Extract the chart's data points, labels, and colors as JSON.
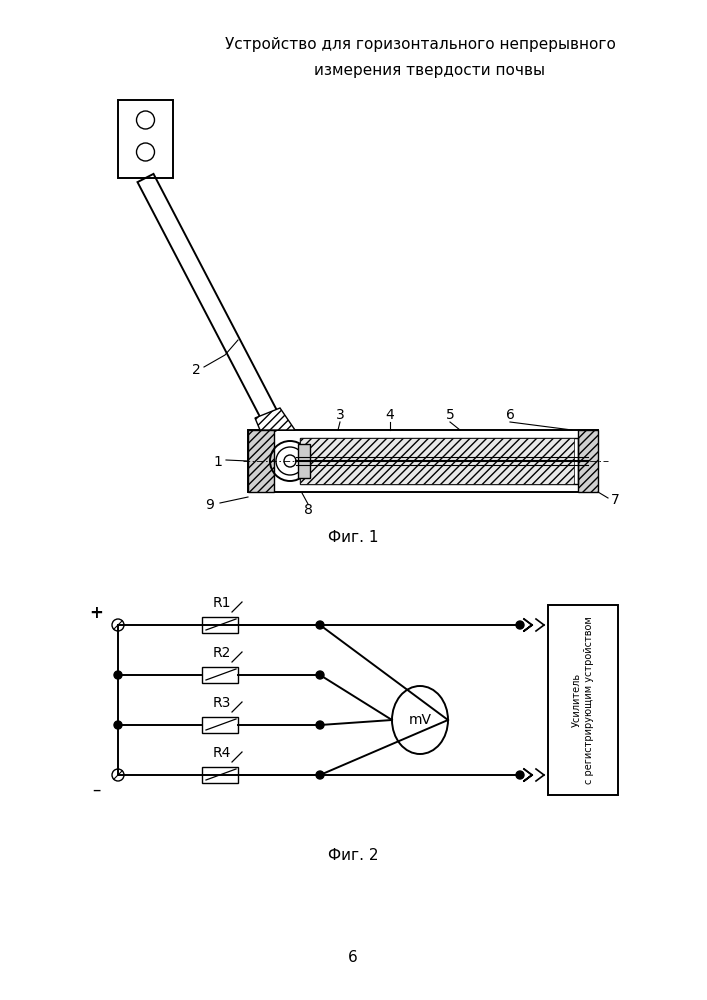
{
  "title_line1": "Устройство для горизонтального непрерывного",
  "title_line2": "измерения твердости почвы",
  "fig1_caption": "Фиг. 1",
  "fig2_caption": "Фиг. 2",
  "page_number": "6",
  "bg_color": "#ffffff",
  "line_color": "#000000"
}
